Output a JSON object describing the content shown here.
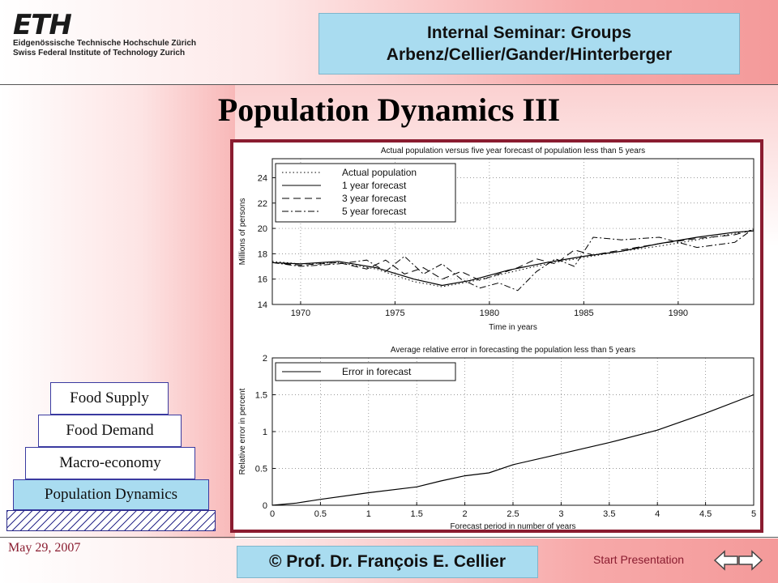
{
  "header": {
    "logo_mark": "ETH",
    "logo_line1": "Eidgenössische Technische Hochschule Zürich",
    "logo_line2": "Swiss Federal Institute of Technology Zurich",
    "seminar_line1": "Internal Seminar: Groups",
    "seminar_line2": "Arbenz/Cellier/Gander/Hinterberger"
  },
  "title": "Population Dynamics III",
  "layers": [
    {
      "label": "Food Supply"
    },
    {
      "label": "Food Demand"
    },
    {
      "label": "Macro-economy"
    },
    {
      "label": "Population Dynamics"
    }
  ],
  "footer": {
    "date": "May 29, 2007",
    "author": "© Prof. Dr. François E. Cellier",
    "start_link": "Start Presentation"
  },
  "colors": {
    "accent_red": "#8a1c30",
    "box_blue": "#a9dcf0"
  },
  "chart_data": [
    {
      "type": "line",
      "title": "Actual population versus five year forecast of population less than 5 years",
      "xlabel": "Time in years",
      "ylabel": "Millions of persons",
      "xlim": [
        1968.5,
        1994
      ],
      "ylim": [
        14,
        25.5
      ],
      "xticks": [
        1970,
        1975,
        1980,
        1985,
        1990
      ],
      "yticks": [
        14,
        16,
        18,
        20,
        22,
        24
      ],
      "grid": true,
      "legend_position": "top-left",
      "series": [
        {
          "name": "Actual population",
          "style": "dotted",
          "x": [
            1968.5,
            1970,
            1972,
            1974,
            1976,
            1977.5,
            1979,
            1981,
            1983,
            1985,
            1987,
            1989,
            1991,
            1993,
            1994
          ],
          "y": [
            17.4,
            17.2,
            17.3,
            16.8,
            15.8,
            15.4,
            15.8,
            16.5,
            17.2,
            17.7,
            18.2,
            18.6,
            19.1,
            19.6,
            19.9
          ]
        },
        {
          "name": "1 year forecast",
          "style": "solid",
          "x": [
            1968.5,
            1970,
            1972,
            1974,
            1976,
            1977.5,
            1979,
            1981,
            1983,
            1985,
            1987,
            1989,
            1991,
            1993,
            1994
          ],
          "y": [
            17.3,
            17.2,
            17.4,
            16.9,
            16.0,
            15.5,
            15.9,
            16.7,
            17.3,
            17.8,
            18.2,
            18.8,
            19.3,
            19.7,
            19.8
          ]
        },
        {
          "name": "3 year forecast",
          "style": "dashed",
          "x": [
            1968.5,
            1970,
            1972,
            1973.5,
            1974.5,
            1975.5,
            1976.5,
            1977.5,
            1978.5,
            1979.5,
            1980.5,
            1981.5,
            1982.5,
            1983.5,
            1984.5,
            1985.5,
            1987,
            1989,
            1991,
            1993,
            1994
          ],
          "y": [
            17.3,
            17.1,
            17.3,
            16.8,
            17.5,
            16.4,
            16.9,
            16.0,
            16.6,
            15.9,
            16.4,
            16.9,
            17.6,
            17.2,
            18.3,
            17.9,
            18.3,
            18.8,
            19.2,
            19.5,
            19.9
          ]
        },
        {
          "name": "5 year forecast",
          "style": "dashdot",
          "x": [
            1968.5,
            1970,
            1972,
            1973.5,
            1974.5,
            1975.5,
            1976.5,
            1977.5,
            1978.5,
            1979.5,
            1980.5,
            1981.5,
            1982.5,
            1983.5,
            1984.5,
            1985.5,
            1987,
            1989,
            1991,
            1993,
            1994
          ],
          "y": [
            17.3,
            17.0,
            17.2,
            17.5,
            16.6,
            17.8,
            16.4,
            17.2,
            16.0,
            15.3,
            15.7,
            15.1,
            16.6,
            17.6,
            17.0,
            19.3,
            19.1,
            19.3,
            18.5,
            18.9,
            20.0
          ]
        }
      ]
    },
    {
      "type": "line",
      "title": "Average relative error in forecasting the population less than 5 years",
      "xlabel": "Forecast period in number of years",
      "ylabel": "Relative error in percent",
      "xlim": [
        0,
        5
      ],
      "ylim": [
        0,
        2
      ],
      "xticks": [
        0,
        0.5,
        1,
        1.5,
        2,
        2.5,
        3,
        3.5,
        4,
        4.5,
        5
      ],
      "yticks": [
        0,
        0.5,
        1,
        1.5,
        2
      ],
      "grid": true,
      "legend_position": "top-left",
      "series": [
        {
          "name": "Error in forecast",
          "style": "solid",
          "x": [
            0,
            0.25,
            0.5,
            1,
            1.5,
            1.75,
            2,
            2.25,
            2.5,
            3,
            3.5,
            4,
            4.5,
            5
          ],
          "y": [
            0,
            0.03,
            0.08,
            0.17,
            0.25,
            0.33,
            0.4,
            0.44,
            0.55,
            0.7,
            0.85,
            1.02,
            1.25,
            1.5
          ]
        }
      ]
    }
  ]
}
